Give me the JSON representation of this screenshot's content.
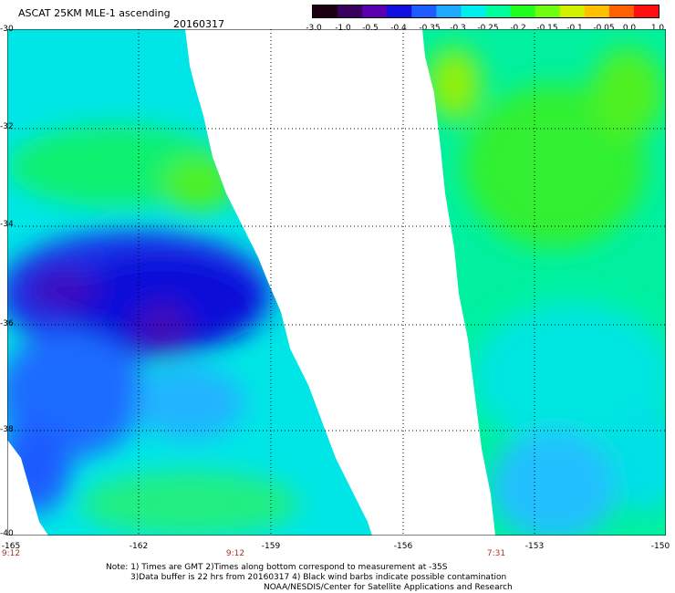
{
  "header": {
    "title": "ASCAT 25KM MLE-1 ascending",
    "date": "20160317"
  },
  "colorbar": {
    "tick_labels": [
      "-3.0",
      "-1.0",
      "-0.5",
      "-0.4",
      "-0.35",
      "-0.3",
      "-0.25",
      "-0.2",
      "-0.15",
      "-0.1",
      "-0.05",
      "0.0",
      "1.0"
    ],
    "colors": [
      "#1a0010",
      "#3a0060",
      "#5a00b0",
      "#1010e0",
      "#1e5cff",
      "#1ea8ff",
      "#00eeee",
      "#00ff9c",
      "#20ff20",
      "#70ff10",
      "#d0f000",
      "#ffc000",
      "#ff6000",
      "#ff1010"
    ]
  },
  "map": {
    "lat_labels": [
      "-30",
      "-32",
      "-34",
      "-36",
      "-38",
      "-40"
    ],
    "lon_labels": [
      "-165",
      "-162",
      "-159",
      "-156",
      "-153",
      "-150"
    ],
    "time_labels": [
      "9:12",
      "9:12",
      "7:31"
    ]
  },
  "notes": [
    "Note: 1) Times are GMT 2)Times along bottom correspond to measurement at -35S",
    "3)Data buffer is 22 hrs from 20160317 4) Black wind barbs indicate possible contamination",
    "NOAA/NESDIS/Center for Satellite Applications and Research"
  ]
}
